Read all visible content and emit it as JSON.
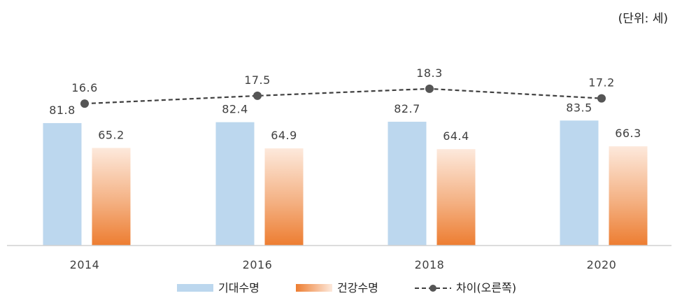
{
  "unit_label": "(단위: 세)",
  "chart_data": {
    "type": "bar",
    "categories": [
      "2014",
      "2016",
      "2018",
      "2020"
    ],
    "series": [
      {
        "name": "기대수명",
        "kind": "bar",
        "axis": "left",
        "color": "#bcd7ee",
        "values": [
          81.8,
          82.4,
          82.7,
          83.5
        ],
        "labels": [
          "81.8",
          "82.4",
          "82.7",
          "83.5"
        ]
      },
      {
        "name": "건강수명",
        "kind": "bar",
        "axis": "left",
        "color": "#ed7d31",
        "values": [
          65.2,
          64.9,
          64.4,
          66.3
        ],
        "labels": [
          "65.2",
          "64.9",
          "64.4",
          "66.3"
        ]
      },
      {
        "name": "차이(오른쪽)",
        "kind": "line",
        "axis": "right",
        "color": "#404040",
        "line_style": "dashed",
        "values": [
          16.6,
          17.5,
          18.3,
          17.2
        ],
        "labels": [
          "16.6",
          "17.5",
          "18.3",
          "17.2"
        ]
      }
    ],
    "ylim": [
      0,
      100
    ],
    "y2lim": [
      0,
      25
    ],
    "legend_position": "bottom",
    "grid": false
  }
}
